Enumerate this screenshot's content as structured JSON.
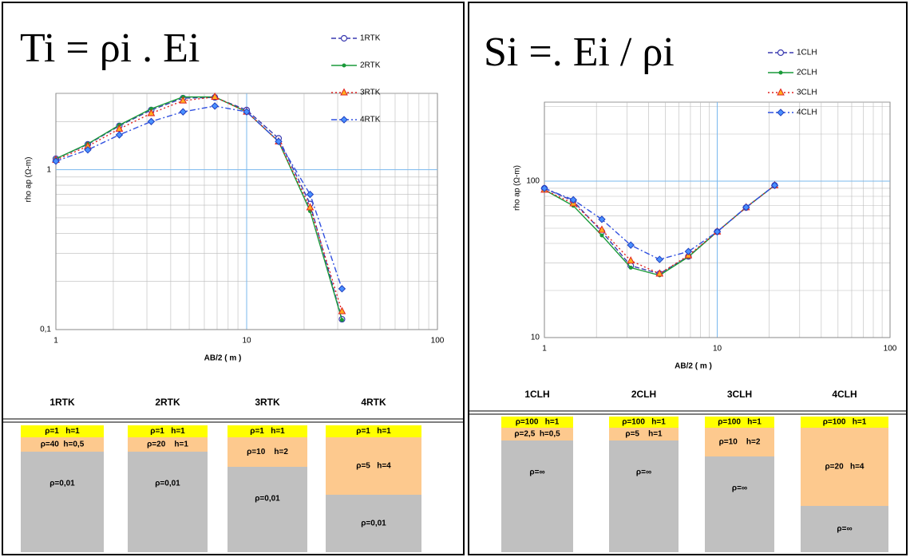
{
  "chart_data": [
    {
      "type": "line",
      "formula": "Ti = ρi . Ei",
      "panel": "A",
      "x_label": "AB/2 ( m )",
      "y_label": "rho ap (Ω-m)",
      "log_x": true,
      "log_y": true,
      "grid": true,
      "x": [
        1,
        1.47,
        2.15,
        3.16,
        4.64,
        6.81,
        10,
        14.7,
        21.5,
        31.6
      ],
      "xlim": [
        1,
        100
      ],
      "xticks": [
        1,
        10,
        100
      ],
      "ylim": [
        0.1,
        3
      ],
      "yticks": [
        {
          "value": 0.1,
          "label": "0,1"
        },
        1
      ],
      "series": [
        {
          "name": "1RTK",
          "color": "#3a3ab0",
          "dash": "6,3",
          "marker": "circle-open",
          "values": [
            1.17,
            1.44,
            1.88,
            2.36,
            2.8,
            2.83,
            2.36,
            1.57,
            0.61,
            0.116
          ]
        },
        {
          "name": "2RTK",
          "color": "#1a9a3a",
          "dash": "none",
          "marker": "dot",
          "values": [
            1.17,
            1.45,
            1.9,
            2.4,
            2.85,
            2.85,
            2.3,
            1.5,
            0.55,
            0.115
          ]
        },
        {
          "name": "3RTK",
          "color": "#e02020",
          "dash": "2,3",
          "marker": "triangle",
          "values": [
            1.15,
            1.4,
            1.8,
            2.25,
            2.7,
            2.85,
            2.3,
            1.5,
            0.58,
            0.13
          ]
        },
        {
          "name": "4RTK",
          "color": "#3050e0",
          "dash": "7,3,2,3",
          "marker": "diamond",
          "values": [
            1.13,
            1.33,
            1.65,
            2.0,
            2.3,
            2.5,
            2.3,
            1.5,
            0.7,
            0.18
          ]
        }
      ],
      "models": [
        {
          "name": "1RTK",
          "layers": [
            "ρ=1   h=1",
            "ρ=40  h=0,5",
            "ρ=0,01"
          ]
        },
        {
          "name": "2RTK",
          "layers": [
            "ρ=1   h=1",
            "ρ=20    h=1",
            "ρ=0,01"
          ]
        },
        {
          "name": "3RTK",
          "layers": [
            "ρ=1   h=1",
            "ρ=10    h=2",
            "ρ=0,01"
          ]
        },
        {
          "name": "4RTK",
          "layers": [
            "ρ=1   h=1",
            "ρ=5   h=4",
            "ρ=0,01"
          ]
        }
      ]
    },
    {
      "type": "line",
      "formula": "Si =. Ei / ρi",
      "panel": "B",
      "x_label": "AB/2 ( m )",
      "y_label": "rho ap (Ω-m)",
      "log_x": true,
      "log_y": true,
      "grid": true,
      "x": [
        1,
        1.47,
        2.15,
        3.16,
        4.64,
        6.81,
        10,
        14.7,
        21.5
      ],
      "xlim": [
        1,
        100
      ],
      "xticks": [
        1,
        10,
        100
      ],
      "ylim": [
        10,
        320
      ],
      "yticks": [
        10,
        100
      ],
      "series": [
        {
          "name": "1CLH",
          "color": "#3a3ab0",
          "dash": "6,3",
          "marker": "circle-open",
          "values": [
            90,
            74.6,
            47.5,
            28.8,
            25.6,
            33,
            47.5,
            67.8,
            94
          ]
        },
        {
          "name": "2CLH",
          "color": "#1a9a3a",
          "dash": "none",
          "marker": "dot",
          "values": [
            88,
            69.6,
            45,
            28,
            25,
            32.8,
            47.5,
            68,
            94
          ]
        },
        {
          "name": "3CLH",
          "color": "#e02020",
          "dash": "2,3",
          "marker": "triangle",
          "values": [
            88,
            72,
            48.8,
            31,
            25.6,
            33.5,
            47.5,
            68,
            94
          ]
        },
        {
          "name": "4CLH",
          "color": "#3050e0",
          "dash": "7,3,2,3",
          "marker": "diamond",
          "values": [
            90,
            76,
            57,
            39,
            31.6,
            35.5,
            47.5,
            68,
            94
          ]
        }
      ],
      "models": [
        {
          "name": "1CLH",
          "layers": [
            "ρ=100   h=1",
            "ρ=2,5  h=0,5",
            "ρ=∞"
          ]
        },
        {
          "name": "2CLH",
          "layers": [
            "ρ=100   h=1",
            "ρ=5    h=1",
            "ρ=∞"
          ]
        },
        {
          "name": "3CLH",
          "layers": [
            "ρ=100   h=1",
            "ρ=10    h=2",
            "ρ=∞"
          ]
        },
        {
          "name": "4CLH",
          "layers": [
            "ρ=100   h=1",
            "ρ=20   h=4",
            "ρ=∞"
          ]
        }
      ]
    }
  ]
}
